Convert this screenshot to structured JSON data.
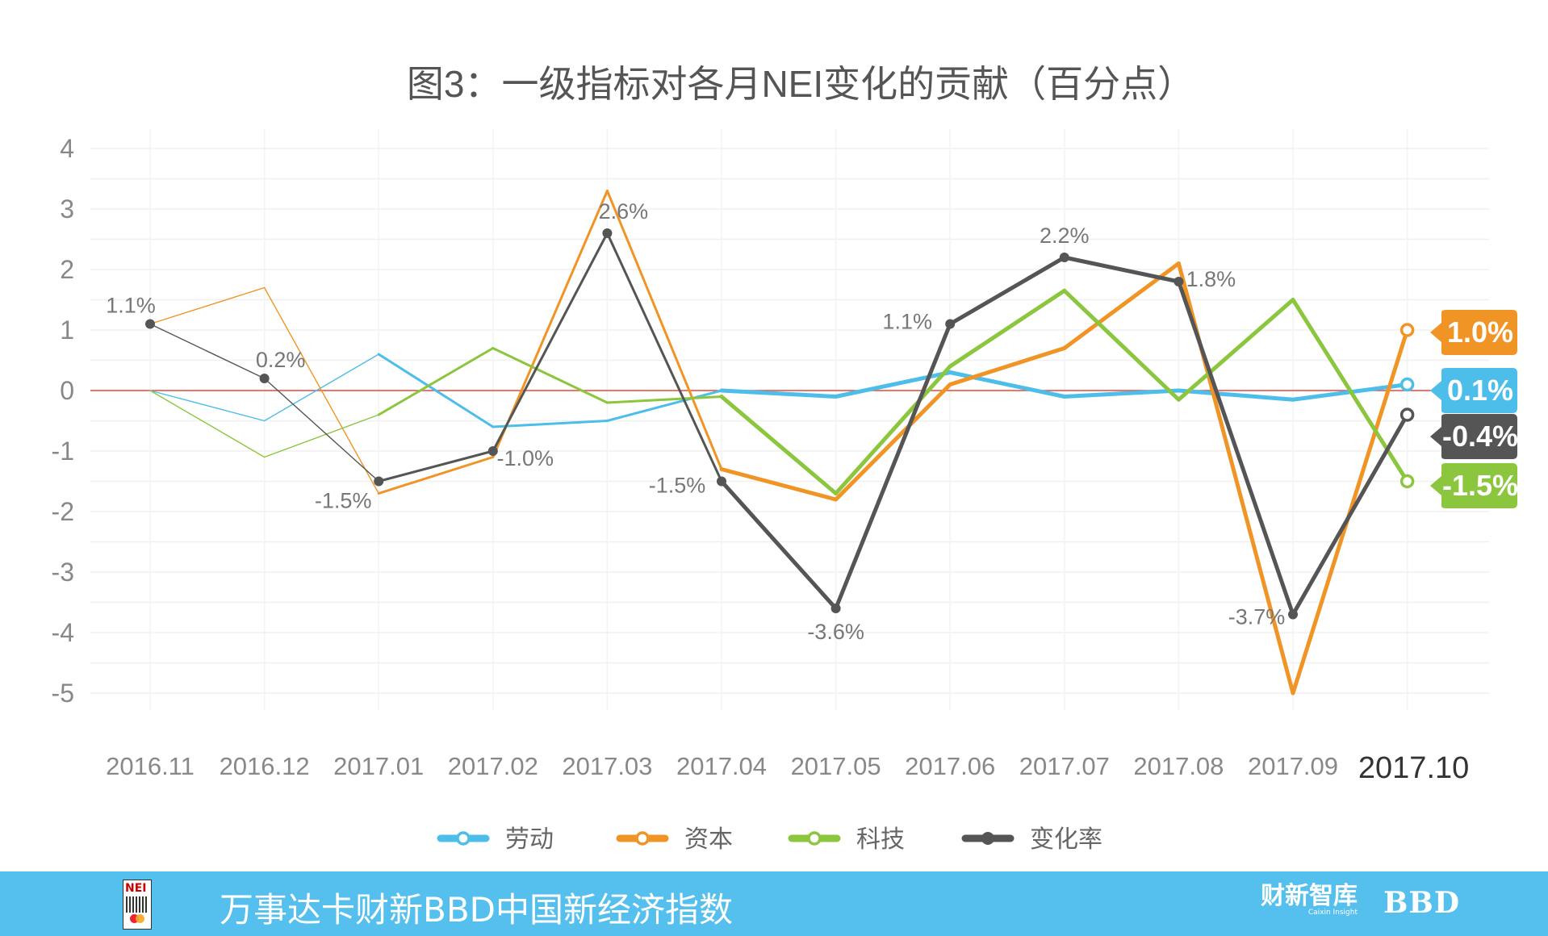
{
  "chart_data": {
    "type": "line",
    "title": "图3：一级指标对各月NEI变化的贡献（百分点）",
    "categories": [
      "2016.11",
      "2016.12",
      "2017.01",
      "2017.02",
      "2017.03",
      "2017.04",
      "2017.05",
      "2017.06",
      "2017.07",
      "2017.08",
      "2017.09",
      "2017.10"
    ],
    "ylim": [
      -5,
      4
    ],
    "yticks": [
      4,
      3,
      2,
      1,
      0,
      -1,
      -2,
      -3,
      -4,
      -5
    ],
    "grid": true,
    "legend_position": "bottom",
    "series": [
      {
        "name": "劳动",
        "color": "#4dbde9",
        "values": [
          0,
          -0.5,
          0.6,
          -0.6,
          -0.5,
          0,
          -0.1,
          0.3,
          -0.1,
          0,
          -0.15,
          0.1
        ]
      },
      {
        "name": "资本",
        "color": "#f19426",
        "values": [
          1.1,
          1.7,
          -1.7,
          -1.1,
          3.3,
          -1.3,
          -1.8,
          0.1,
          0.7,
          2.1,
          -5.0,
          1.0
        ]
      },
      {
        "name": "科技",
        "color": "#8cc63f",
        "values": [
          0,
          -1.1,
          -0.4,
          0.7,
          -0.2,
          -0.1,
          -1.7,
          0.4,
          1.65,
          -0.15,
          1.5,
          -1.5
        ]
      },
      {
        "name": "变化率",
        "color": "#555555",
        "values": [
          1.1,
          0.2,
          -1.5,
          -1.0,
          2.6,
          -1.5,
          -3.6,
          1.1,
          2.2,
          1.8,
          -3.7,
          -0.4
        ]
      }
    ],
    "point_labels": [
      "1.1%",
      "0.2%",
      "-1.5%",
      "-1.0%",
      "2.6%",
      "-1.5%",
      "-3.6%",
      "1.1%",
      "2.2%",
      "1.8%",
      "-3.7%"
    ],
    "end_badges": [
      "1.0%",
      "0.1%",
      "-0.4%",
      "-1.5%"
    ]
  },
  "footer": {
    "logo_text": "NEI",
    "title": "万事达卡财新BBD中国新经济指数",
    "brand_caixin": "财新智库",
    "brand_caixin_sub": "Caixin Insight",
    "brand_bbd": "BBD"
  },
  "colors": {
    "footer_bg": "#55bfee",
    "zero_line": "#e74c3c"
  }
}
